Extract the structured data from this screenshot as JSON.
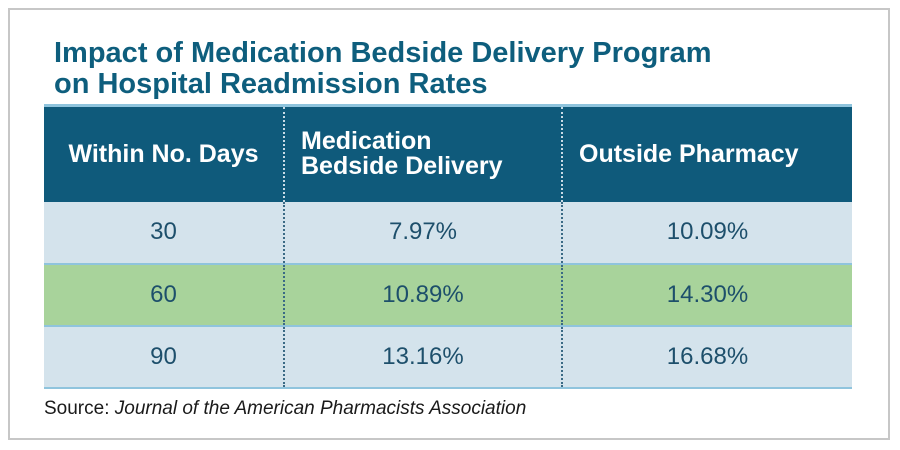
{
  "title": {
    "line1": "Impact of Medication Bedside Delivery Program",
    "line2": "on Hospital Readmission Rates"
  },
  "table": {
    "headers": [
      [
        "Within No. Days"
      ],
      [
        "Medication",
        "Bedside Delivery"
      ],
      [
        "Outside Pharmacy"
      ]
    ],
    "rows": [
      [
        "30",
        "7.97%",
        "10.09%"
      ],
      [
        "60",
        "10.89%",
        "14.30%"
      ],
      [
        "90",
        "13.16%",
        "16.68%"
      ]
    ],
    "row_colors": [
      "#d4e3ec",
      "#a8d39b",
      "#d4e3ec"
    ],
    "header_color": "#0f5a7b"
  },
  "source": {
    "prefix": "Source: ",
    "name": "Journal of the American Pharmacists Association"
  }
}
